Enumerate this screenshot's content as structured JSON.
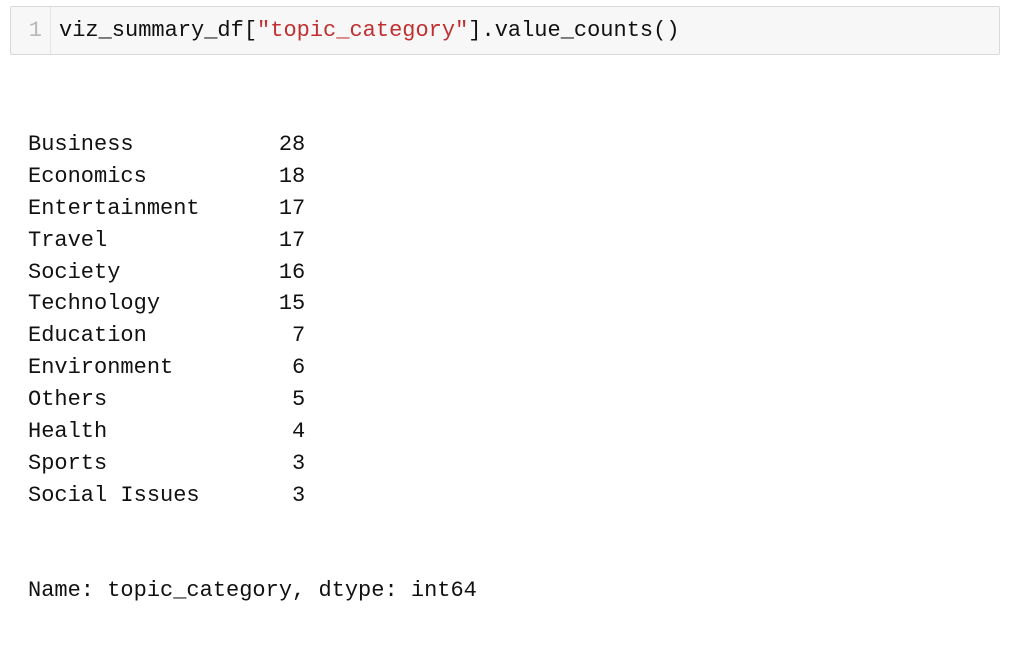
{
  "colors": {
    "page_bg": "#ffffff",
    "cell_bg": "#f7f7f7",
    "cell_border": "#d9d9d9",
    "gutter_divider": "#e4e4e4",
    "gutter_text": "#b8b8b8",
    "code_text": "#111111",
    "string_text": "#c03030",
    "output_text": "#111111"
  },
  "typography": {
    "font_family": "monospace",
    "code_fontsize_pt": 17,
    "output_fontsize_pt": 17,
    "line_height": 1.45
  },
  "input": {
    "line_number": "1",
    "tokens": {
      "t0": "viz_summary_df",
      "t1": "[",
      "t2": "\"topic_category\"",
      "t3": "]",
      "t4": ".",
      "t5": "value_counts",
      "t6": "(",
      "t7": ")"
    }
  },
  "output": {
    "label_col_chars": 17,
    "count_col_chars": 4,
    "rows": [
      {
        "label": "Business",
        "count": "28"
      },
      {
        "label": "Economics",
        "count": "18"
      },
      {
        "label": "Entertainment",
        "count": "17"
      },
      {
        "label": "Travel",
        "count": "17"
      },
      {
        "label": "Society",
        "count": "16"
      },
      {
        "label": "Technology",
        "count": "15"
      },
      {
        "label": "Education",
        "count": "7"
      },
      {
        "label": "Environment",
        "count": "6"
      },
      {
        "label": "Others",
        "count": "5"
      },
      {
        "label": "Health",
        "count": "4"
      },
      {
        "label": "Sports",
        "count": "3"
      },
      {
        "label": "Social Issues",
        "count": "3"
      }
    ],
    "footer": "Name: topic_category, dtype: int64"
  }
}
